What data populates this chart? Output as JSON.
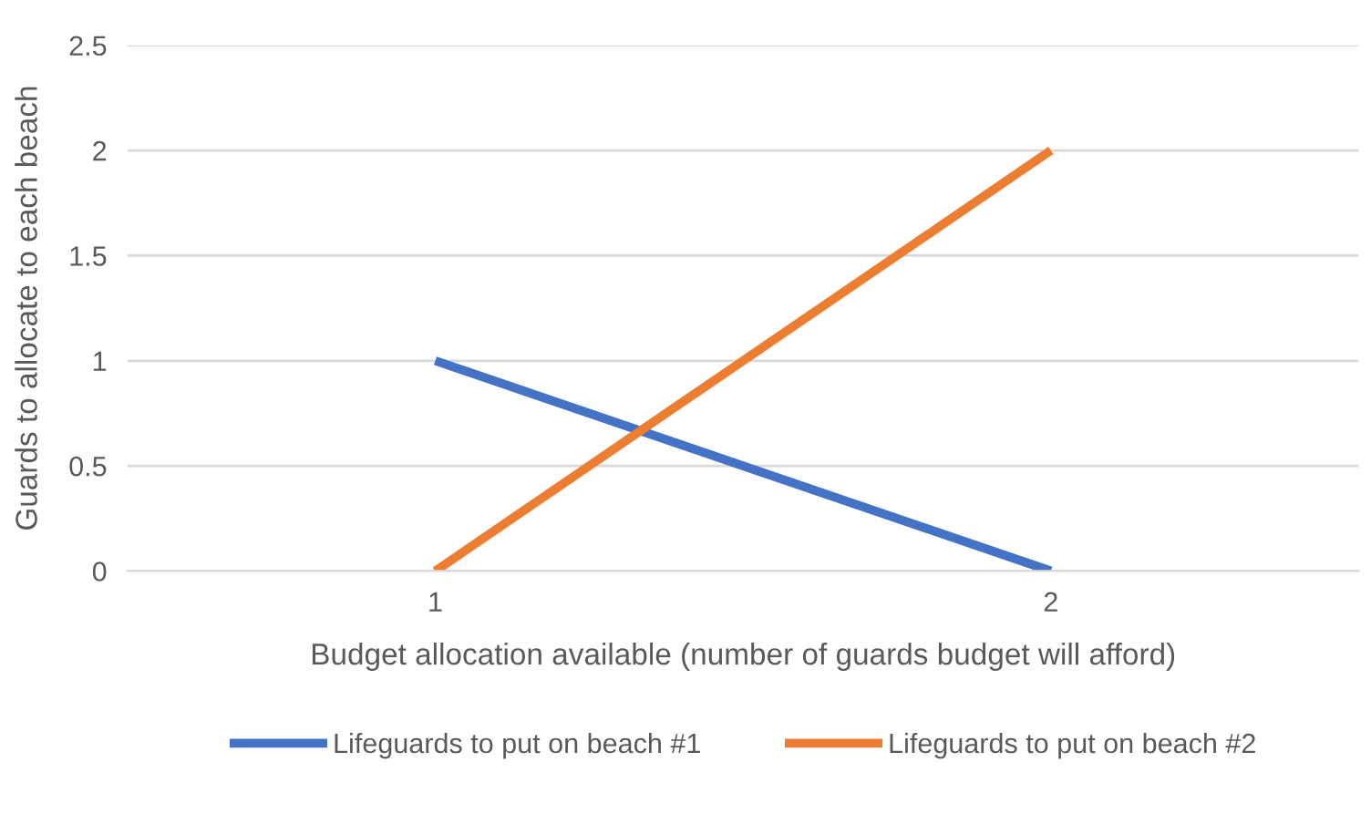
{
  "chart_data": {
    "type": "line",
    "xlabel": "Budget allocation available (number of guards budget will afford)",
    "ylabel": "Guards to allocate to each beach",
    "categories": [
      "1",
      "2"
    ],
    "series": [
      {
        "name": "Lifeguards to put on beach #1",
        "color": "#4472c4",
        "values": [
          1,
          0
        ]
      },
      {
        "name": "Lifeguards to put on beach #2",
        "color": "#ed7d31",
        "values": [
          0,
          2
        ]
      }
    ],
    "ylim": [
      0,
      2.5
    ],
    "yticks": [
      0,
      0.5,
      1,
      1.5,
      2,
      2.5
    ],
    "grid": "y",
    "legend": "bottom",
    "marker": "none",
    "line_style": "solid"
  }
}
